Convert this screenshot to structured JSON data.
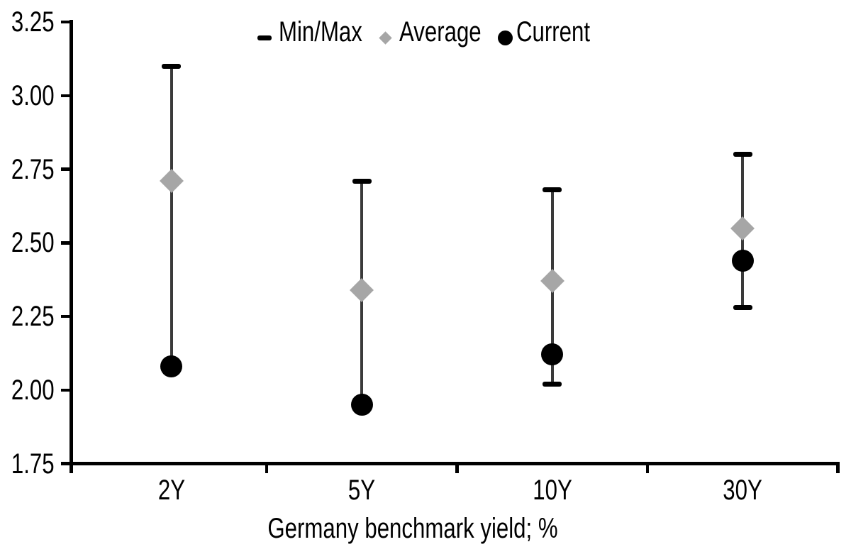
{
  "chart_data": {
    "type": "scatter",
    "subtype": "min-max-range",
    "title": "",
    "xlabel": "Germany benchmark yield; %",
    "ylabel": "",
    "categories": [
      "2Y",
      "5Y",
      "10Y",
      "30Y"
    ],
    "series": [
      {
        "name": "Min/Max",
        "marker": "dash",
        "color": "#000000",
        "max": [
          3.1,
          2.71,
          2.68,
          2.8
        ],
        "min": [
          2.08,
          1.95,
          2.02,
          2.28
        ]
      },
      {
        "name": "Average",
        "marker": "diamond",
        "color": "#a6a6a6",
        "values": [
          2.71,
          2.34,
          2.37,
          2.55
        ]
      },
      {
        "name": "Current",
        "marker": "circle",
        "color": "#000000",
        "values": [
          2.08,
          1.95,
          2.12,
          2.44
        ]
      }
    ],
    "ylim": [
      1.75,
      3.25
    ],
    "y_tick_step": 0.25,
    "y_tick_labels": [
      "1.75",
      "2.00",
      "2.25",
      "2.50",
      "2.75",
      "3.00",
      "3.25"
    ],
    "legend_position": "top",
    "grid": false,
    "range_line_color": "#3a3a3a",
    "axis_color": "#000000",
    "text_color": "#000000",
    "background": "#ffffff",
    "note": "min caps for 2Y and 5Y coincide with Current dot (min = current)"
  }
}
